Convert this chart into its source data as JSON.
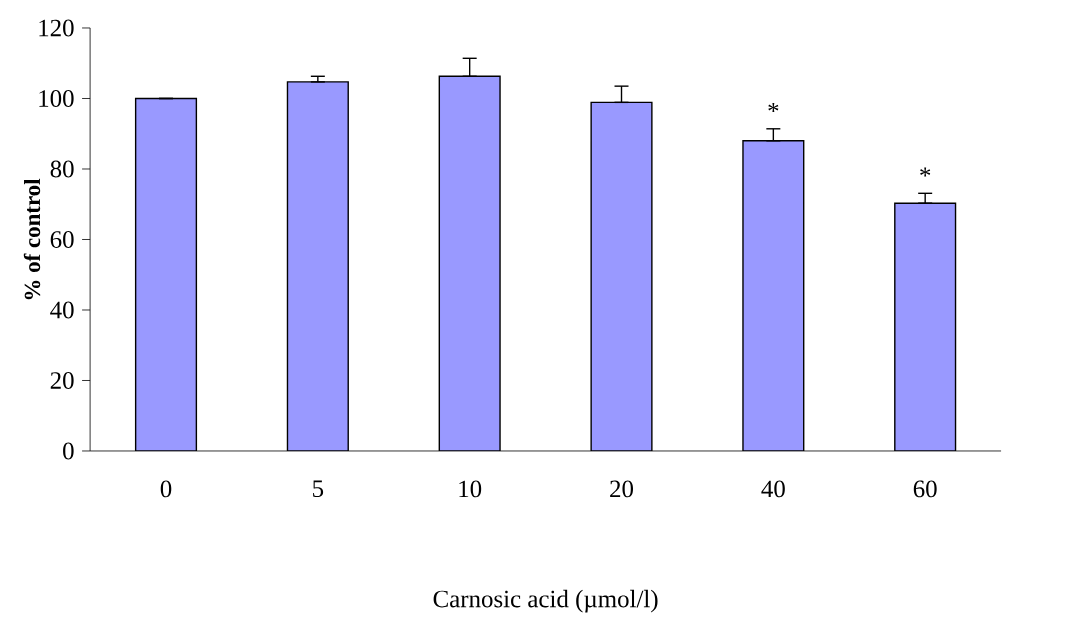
{
  "chart_data": {
    "type": "bar",
    "xlabel": "Carnosic acid (µmol/l)",
    "ylabel": "% of control",
    "categories": [
      "0",
      "5",
      "10",
      "20",
      "40",
      "60"
    ],
    "values": [
      100,
      104.7,
      106.3,
      98.9,
      88.0,
      70.3
    ],
    "errors": [
      [
        100,
        100
      ],
      [
        104.7,
        106.3
      ],
      [
        106.3,
        111.4
      ],
      [
        98.9,
        103.5
      ],
      [
        88.0,
        91.4
      ],
      [
        70.3,
        73.1
      ]
    ],
    "color": "#9999ff",
    "ylim": [
      0,
      120
    ],
    "yticks": [
      0,
      20,
      40,
      60,
      80,
      100,
      120
    ],
    "annotations": [
      {
        "text": "*",
        "x": "40",
        "y": 91.4
      },
      {
        "text": "*",
        "x": "60",
        "y": 73.1
      }
    ],
    "grid": false
  }
}
